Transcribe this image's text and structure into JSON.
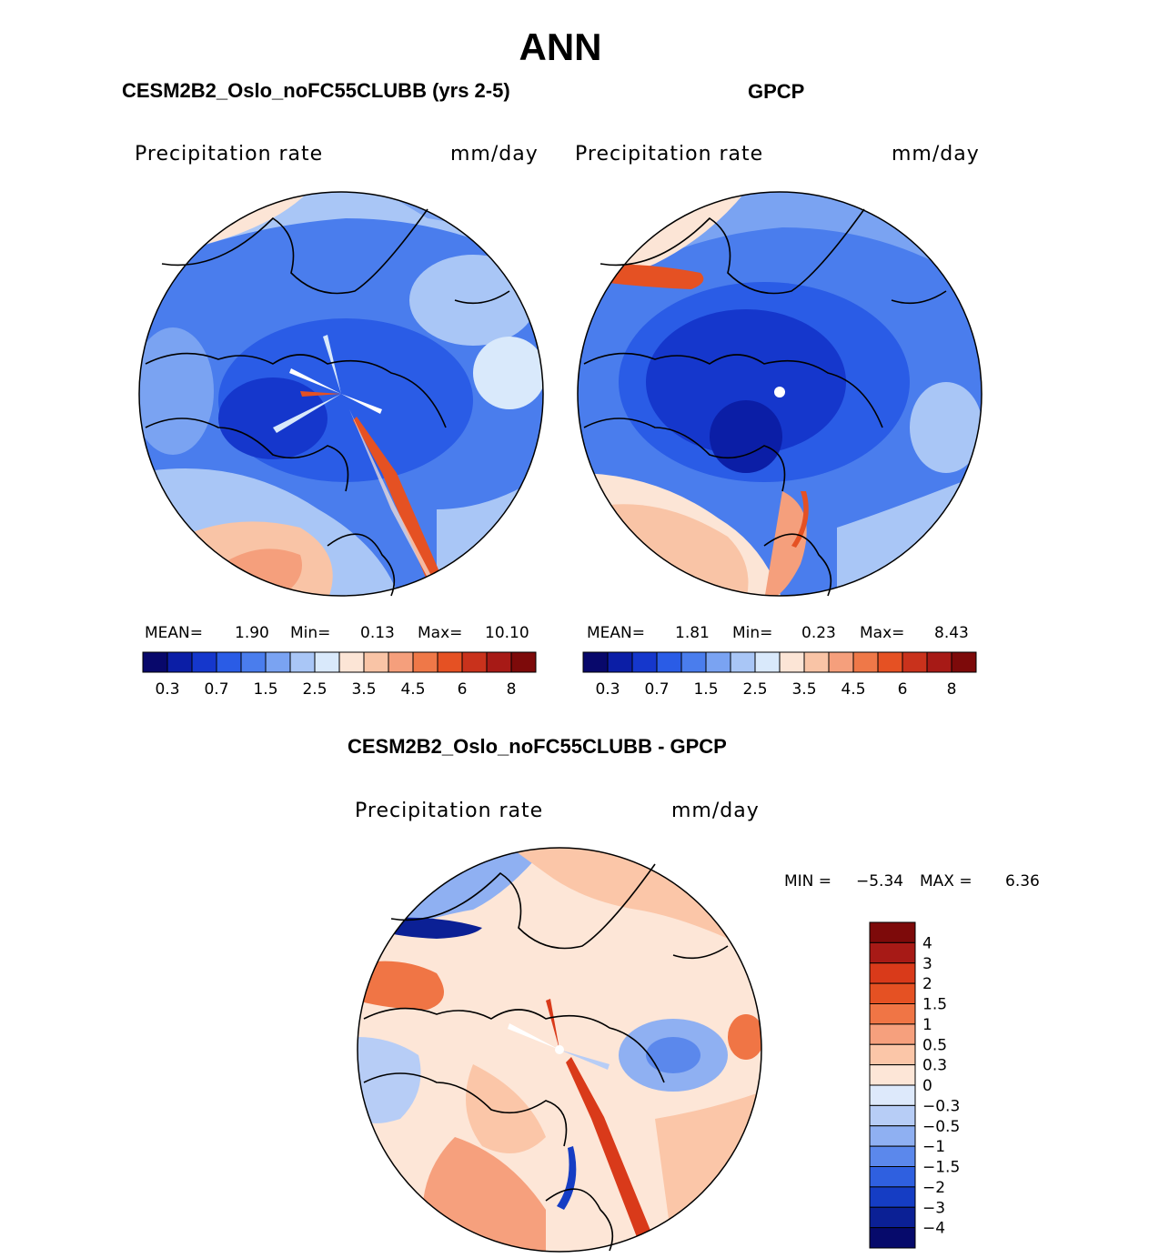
{
  "title": "ANN",
  "panels": {
    "model": {
      "title": "CESM2B2_Oslo_noFC55CLUBB (yrs 2-5)",
      "variable": "Precipitation rate",
      "units": "mm/day",
      "mean_label": "MEAN=",
      "mean": "1.90",
      "min_label": "Min=",
      "min": "0.13",
      "max_label": "Max=",
      "max": "10.10"
    },
    "obs": {
      "title": "GPCP",
      "variable": "Precipitation rate",
      "units": "mm/day",
      "mean_label": "MEAN=",
      "mean": "1.81",
      "min_label": "Min=",
      "min": "0.23",
      "max_label": "Max=",
      "max": "8.43"
    },
    "diff": {
      "title": "CESM2B2_Oslo_noFC55CLUBB - GPCP",
      "variable": "Precipitation rate",
      "units": "mm/day",
      "min_label": "MIN =",
      "min": "−5.34",
      "max_label": "MAX =",
      "max": "6.36"
    }
  },
  "chart_data": [
    {
      "type": "heatmap",
      "projection": "north-polar-stereographic",
      "title": "CESM2B2_Oslo_noFC55CLUBB (yrs 2-5)",
      "field": "Precipitation rate",
      "units": "mm/day",
      "mean": 1.9,
      "min": 0.13,
      "max": 10.1,
      "levels": [
        0.2,
        0.3,
        0.5,
        0.7,
        1,
        1.5,
        2,
        2.5,
        3,
        3.5,
        4,
        4.5,
        5,
        6,
        7,
        8
      ],
      "colorbar_tick_labels": [
        "0.3",
        "0.7",
        "1.5",
        "2.5",
        "3.5",
        "4.5",
        "6",
        "8"
      ],
      "colors": [
        "#08086b",
        "#0b1ea6",
        "#1537cc",
        "#2a5ce6",
        "#4a7ded",
        "#7aa3f2",
        "#a9c6f6",
        "#d9e9fb",
        "#fce5d6",
        "#f9c4a6",
        "#f59f7c",
        "#ef7848",
        "#e55123",
        "#c9321c",
        "#a71a16",
        "#7d0a0a"
      ]
    },
    {
      "type": "heatmap",
      "projection": "north-polar-stereographic",
      "title": "GPCP",
      "field": "Precipitation rate",
      "units": "mm/day",
      "mean": 1.81,
      "min": 0.23,
      "max": 8.43,
      "levels": [
        0.2,
        0.3,
        0.5,
        0.7,
        1,
        1.5,
        2,
        2.5,
        3,
        3.5,
        4,
        4.5,
        5,
        6,
        7,
        8
      ],
      "colorbar_tick_labels": [
        "0.3",
        "0.7",
        "1.5",
        "2.5",
        "3.5",
        "4.5",
        "6",
        "8"
      ],
      "colors": [
        "#08086b",
        "#0b1ea6",
        "#1537cc",
        "#2a5ce6",
        "#4a7ded",
        "#7aa3f2",
        "#a9c6f6",
        "#d9e9fb",
        "#fce5d6",
        "#f9c4a6",
        "#f59f7c",
        "#ef7848",
        "#e55123",
        "#c9321c",
        "#a71a16",
        "#7d0a0a"
      ]
    },
    {
      "type": "heatmap",
      "projection": "north-polar-stereographic",
      "title": "CESM2B2_Oslo_noFC55CLUBB - GPCP",
      "field": "Precipitation rate",
      "units": "mm/day",
      "min": -5.34,
      "max": 6.36,
      "colorbar_tick_labels": [
        "4",
        "3",
        "2",
        "1.5",
        "1",
        "0.5",
        "0.3",
        "0",
        "−0.3",
        "−0.5",
        "−1",
        "−1.5",
        "−2",
        "−3",
        "−4"
      ],
      "colors": [
        "#7d0a0a",
        "#a71a16",
        "#d93a1a",
        "#e55123",
        "#f07545",
        "#f6a07d",
        "#fbc6a8",
        "#fde6d7",
        "#dde9fb",
        "#b7cdf6",
        "#8fb0f2",
        "#5b88ec",
        "#2f60e0",
        "#153dc4",
        "#0b2095",
        "#060a6b"
      ]
    }
  ]
}
